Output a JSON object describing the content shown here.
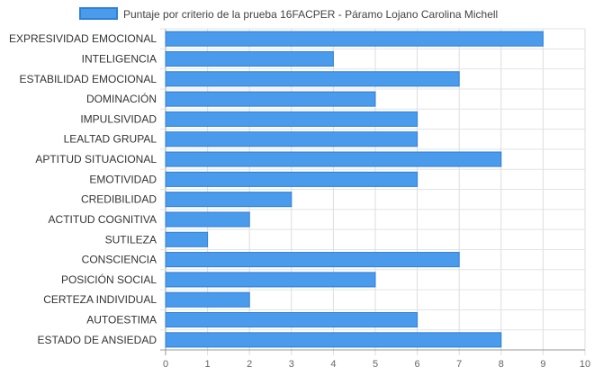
{
  "chart_data": {
    "type": "bar",
    "orientation": "horizontal",
    "categories": [
      "EXPRESIVIDAD EMOCIONAL",
      "INTELIGENCIA",
      "ESTABILIDAD EMOCIONAL",
      "DOMINACIÓN",
      "IMPULSIVIDAD",
      "LEALTAD GRUPAL",
      "APTITUD SITUACIONAL",
      "EMOTIVIDAD",
      "CREDIBILIDAD",
      "ACTITUD COGNITIVA",
      "SUTILEZA",
      "CONSCIENCIA",
      "POSICIÓN SOCIAL",
      "CERTEZA INDIVIDUAL",
      "AUTOESTIMA",
      "ESTADO DE ANSIEDAD"
    ],
    "series": [
      {
        "name": "Puntaje por criterio de la prueba 16FACPER - Páramo Lojano Carolina Michell",
        "values": [
          9,
          4,
          7,
          5,
          6,
          6,
          8,
          6,
          3,
          2,
          1,
          7,
          5,
          2,
          6,
          8
        ],
        "color": "#4a9bec",
        "border_color": "#2f7fd6"
      }
    ],
    "xlim": [
      0,
      10
    ],
    "x_ticks": [
      "0",
      "1",
      "2",
      "3",
      "4",
      "5",
      "6",
      "7",
      "8",
      "9",
      "10"
    ],
    "grid": true,
    "legend_position": "top-center",
    "title": "",
    "xlabel": "",
    "ylabel": ""
  }
}
